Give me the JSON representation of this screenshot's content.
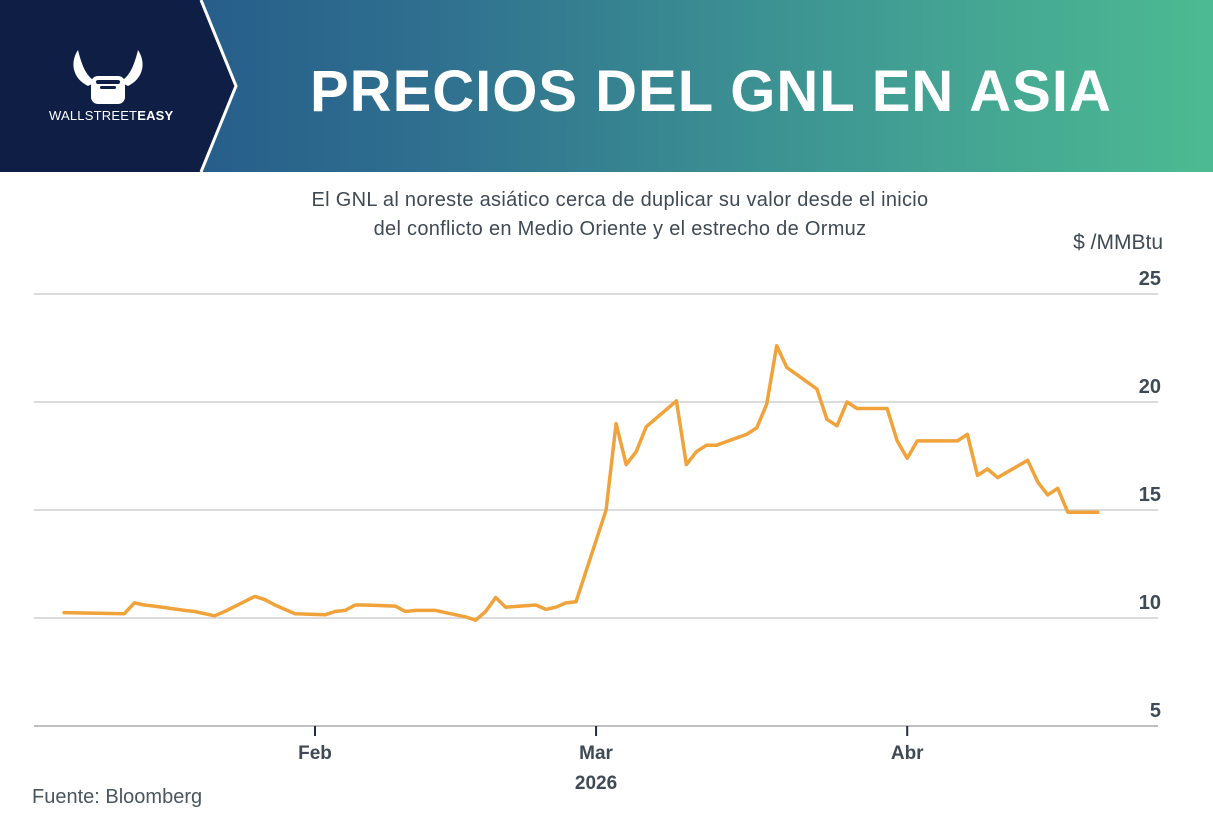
{
  "header": {
    "brand_light": "WALLSTREET",
    "brand_bold": "EASY",
    "logo_icon": "bull-fist-icon",
    "title": "PRECIOS DEL GNL EN ASIA"
  },
  "colors": {
    "header_dark": "#0e1e45",
    "header_gradient_start": "#1f4f86",
    "header_gradient_end": "#4dbb92",
    "line": "#f0a23b",
    "grid": "#d0d0d0",
    "text": "#404a55"
  },
  "source": "Fuente: Bloomberg",
  "chart_data": {
    "type": "line",
    "subtitle_line1": "El GNL al noreste asiático cerca de duplicar su valor desde el inicio",
    "subtitle_line2": "del conflicto en Medio Oriente y el estrecho de Ormuz",
    "unit": "$ /MMBtu",
    "ylim": [
      5,
      25
    ],
    "yticks": [
      25,
      20,
      15,
      10,
      5
    ],
    "xlim": [
      "2026-01-05",
      "2026-04-22"
    ],
    "xticks": [
      {
        "date": "2026-02-01",
        "label": "Feb"
      },
      {
        "date": "2026-03-01",
        "label": "Mar"
      },
      {
        "date": "2026-04-01",
        "label": "Abr"
      }
    ],
    "xlabel": "2026",
    "grid": true,
    "series": [
      {
        "x": [
          "2026-01-07",
          "2026-01-13",
          "2026-01-14",
          "2026-01-15",
          "2026-01-16",
          "2026-01-19",
          "2026-01-20",
          "2026-01-21",
          "2026-01-22",
          "2026-01-23",
          "2026-01-26",
          "2026-01-27",
          "2026-01-28",
          "2026-01-29",
          "2026-01-30",
          "2026-02-02",
          "2026-02-03",
          "2026-02-04",
          "2026-02-05",
          "2026-02-06",
          "2026-02-09",
          "2026-02-10",
          "2026-02-11",
          "2026-02-12",
          "2026-02-13",
          "2026-02-16",
          "2026-02-17",
          "2026-02-18",
          "2026-02-19",
          "2026-02-20",
          "2026-02-23",
          "2026-02-24",
          "2026-02-25",
          "2026-02-26",
          "2026-02-27",
          "2026-03-02",
          "2026-03-03",
          "2026-03-04",
          "2026-03-05",
          "2026-03-06",
          "2026-03-09",
          "2026-03-10",
          "2026-03-11",
          "2026-03-12",
          "2026-03-13",
          "2026-03-16",
          "2026-03-17",
          "2026-03-18",
          "2026-03-19",
          "2026-03-20",
          "2026-03-23",
          "2026-03-24",
          "2026-03-25",
          "2026-03-26",
          "2026-03-27",
          "2026-03-30",
          "2026-03-31",
          "2026-04-01",
          "2026-04-02",
          "2026-04-03",
          "2026-04-06",
          "2026-04-07",
          "2026-04-08",
          "2026-04-09",
          "2026-04-10",
          "2026-04-13",
          "2026-04-14",
          "2026-04-15",
          "2026-04-16",
          "2026-04-17",
          "2026-04-20"
        ],
        "values": [
          10.25,
          10.2,
          10.7,
          10.6,
          10.55,
          10.35,
          10.3,
          10.2,
          10.1,
          10.3,
          11.0,
          10.85,
          10.6,
          10.4,
          10.2,
          10.15,
          10.3,
          10.35,
          10.6,
          10.6,
          10.55,
          10.3,
          10.35,
          10.35,
          10.35,
          10.05,
          9.9,
          10.3,
          10.95,
          10.5,
          10.6,
          10.4,
          10.5,
          10.7,
          10.75,
          15.0,
          19.0,
          17.1,
          17.7,
          18.85,
          20.05,
          17.1,
          17.7,
          18.0,
          18.0,
          18.5,
          18.8,
          19.9,
          22.6,
          21.6,
          20.6,
          19.2,
          18.9,
          20.0,
          19.7,
          19.7,
          18.2,
          17.4,
          18.2,
          18.2,
          18.2,
          18.5,
          16.6,
          16.9,
          16.5,
          17.3,
          16.3,
          15.7,
          16.0,
          14.9,
          14.9
        ]
      }
    ]
  }
}
